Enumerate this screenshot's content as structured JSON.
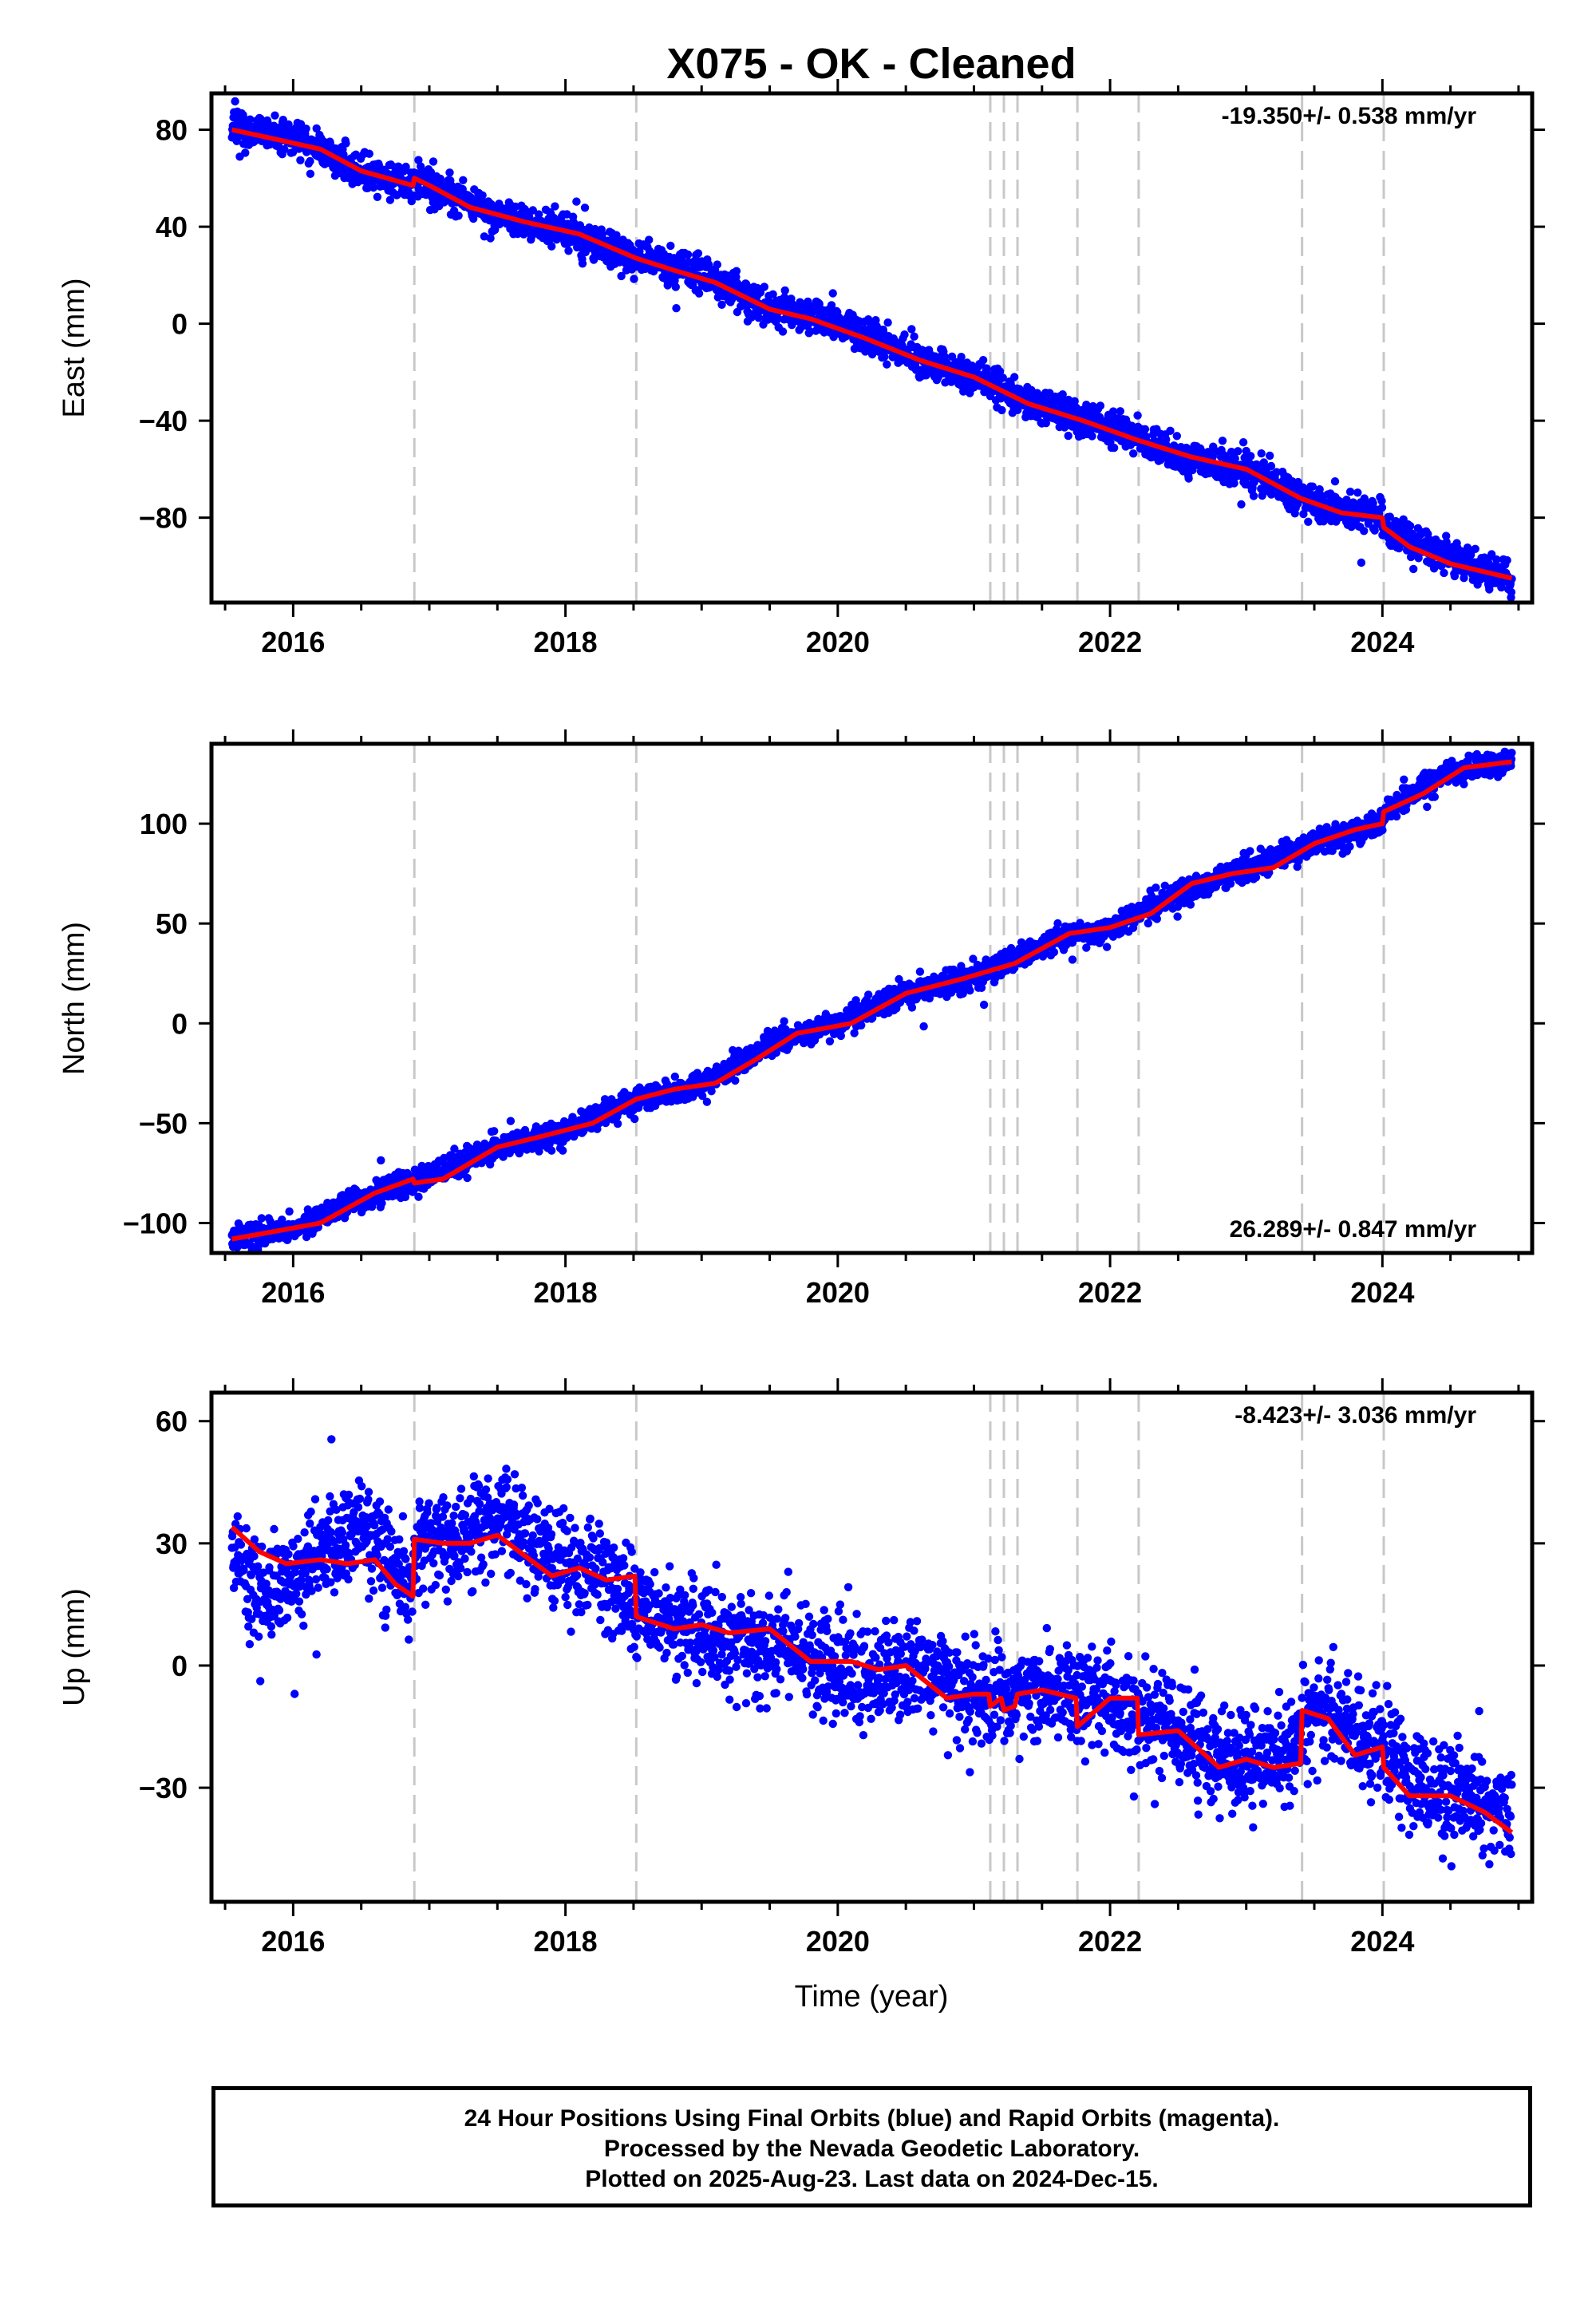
{
  "title": "X075  - OK - Cleaned",
  "colors": {
    "final_orbits": "#0000ff",
    "model_fit": "#ff0000",
    "event_lines": "#c8c8c8",
    "frame": "#000000"
  },
  "xaxis": {
    "label": "Time (year)",
    "range": [
      2015.4,
      2025.1
    ],
    "ticks": [
      2016,
      2018,
      2020,
      2022,
      2024
    ],
    "tick_labels": [
      "2016",
      "2018",
      "2020",
      "2022",
      "2024"
    ]
  },
  "events": [
    2016.89,
    2018.52,
    2021.12,
    2021.22,
    2021.32,
    2021.76,
    2022.21,
    2023.41,
    2024.01
  ],
  "chart_data": [
    {
      "type": "scatter",
      "component": "east",
      "ylabel": "East (mm)",
      "ylim": [
        -115,
        95
      ],
      "yticks": [
        80,
        40,
        0,
        -40,
        -80
      ],
      "ytick_labels": [
        "80",
        "40",
        "0",
        "−40",
        "−80"
      ],
      "rate_label": "-19.350+/- 0.538 mm/yr",
      "rate_position": "top-right",
      "model": {
        "x": [
          2015.55,
          2015.8,
          2016.2,
          2016.5,
          2016.88,
          2016.89,
          2017.0,
          2017.3,
          2017.7,
          2018.1,
          2018.52,
          2018.8,
          2019.1,
          2019.5,
          2019.8,
          2020.2,
          2020.6,
          2021.0,
          2021.4,
          2021.8,
          2022.2,
          2022.6,
          2023.0,
          2023.4,
          2023.7,
          2024.0,
          2024.01,
          2024.2,
          2024.5,
          2024.95
        ],
        "y": [
          80,
          77,
          72,
          63,
          57,
          60,
          57,
          48,
          42,
          37,
          27,
          22,
          17,
          6,
          2,
          -6,
          -15,
          -22,
          -33,
          -40,
          -48,
          -55,
          -60,
          -72,
          -78,
          -80,
          -84,
          -92,
          -99,
          -105
        ]
      },
      "observations": {
        "x": [
          2015.55,
          2016.0,
          2016.5,
          2016.88,
          2016.89,
          2017.5,
          2018.0,
          2018.52,
          2019.0,
          2019.5,
          2020.0,
          2020.6,
          2021.0,
          2021.5,
          2022.0,
          2022.5,
          2023.0,
          2023.5,
          2024.0,
          2024.01,
          2024.5,
          2024.95
        ],
        "y": [
          80,
          77,
          62,
          57,
          60,
          45,
          38,
          27,
          20,
          6,
          1,
          -15,
          -22,
          -35,
          -42,
          -55,
          -60,
          -74,
          -80,
          -84,
          -97,
          -105
        ],
        "scatter_mm": 3.5
      }
    },
    {
      "type": "scatter",
      "component": "north",
      "ylabel": "North (mm)",
      "ylim": [
        -115,
        140
      ],
      "yticks": [
        100,
        50,
        0,
        -50,
        -100
      ],
      "ytick_labels": [
        "100",
        "50",
        "0",
        "−50",
        "−100"
      ],
      "rate_label": "26.289+/- 0.847 mm/yr",
      "rate_position": "bottom-right",
      "model": {
        "x": [
          2015.55,
          2015.8,
          2016.2,
          2016.6,
          2016.88,
          2016.89,
          2017.1,
          2017.5,
          2017.8,
          2018.2,
          2018.52,
          2018.8,
          2019.1,
          2019.4,
          2019.7,
          2020.1,
          2020.5,
          2020.9,
          2021.3,
          2021.7,
          2022.0,
          2022.3,
          2022.6,
          2022.9,
          2023.2,
          2023.5,
          2023.8,
          2024.0,
          2024.01,
          2024.3,
          2024.6,
          2024.95
        ],
        "y": [
          -108,
          -105,
          -100,
          -85,
          -78,
          -80,
          -78,
          -62,
          -57,
          -50,
          -38,
          -33,
          -30,
          -18,
          -5,
          0,
          15,
          22,
          30,
          45,
          48,
          55,
          70,
          75,
          78,
          90,
          97,
          100,
          106,
          115,
          128,
          131
        ]
      },
      "observations": {
        "x": [
          2015.55,
          2016.0,
          2016.6,
          2016.88,
          2016.89,
          2017.5,
          2018.0,
          2018.52,
          2019.0,
          2019.5,
          2020.0,
          2020.5,
          2021.0,
          2021.6,
          2022.0,
          2022.5,
          2023.0,
          2023.5,
          2024.0,
          2024.01,
          2024.5,
          2024.95
        ],
        "y": [
          -108,
          -103,
          -85,
          -78,
          -80,
          -62,
          -54,
          -38,
          -31,
          -10,
          0,
          15,
          23,
          42,
          48,
          65,
          77,
          90,
          100,
          106,
          126,
          131
        ],
        "scatter_mm": 3.0
      }
    },
    {
      "type": "scatter",
      "component": "up",
      "ylabel": "Up (mm)",
      "ylim": [
        -58,
        67
      ],
      "yticks": [
        60,
        30,
        0,
        -30
      ],
      "ytick_labels": [
        "60",
        "30",
        "0",
        "−30"
      ],
      "rate_label": "-8.423+/- 3.036 mm/yr",
      "rate_position": "top-right",
      "model": {
        "x": [
          2015.55,
          2015.75,
          2015.95,
          2016.2,
          2016.4,
          2016.6,
          2016.75,
          2016.88,
          2016.89,
          2017.1,
          2017.3,
          2017.5,
          2017.7,
          2017.9,
          2018.1,
          2018.3,
          2018.51,
          2018.52,
          2018.8,
          2019.0,
          2019.2,
          2019.5,
          2019.8,
          2020.1,
          2020.3,
          2020.5,
          2020.8,
          2021.0,
          2021.11,
          2021.12,
          2021.2,
          2021.22,
          2021.3,
          2021.32,
          2021.5,
          2021.75,
          2021.76,
          2022.0,
          2022.2,
          2022.21,
          2022.5,
          2022.8,
          2023.0,
          2023.2,
          2023.4,
          2023.41,
          2023.6,
          2023.8,
          2024.0,
          2024.01,
          2024.2,
          2024.5,
          2024.75,
          2024.95
        ],
        "y": [
          34,
          28,
          25,
          26,
          25,
          26,
          20,
          17,
          31,
          30,
          30,
          32,
          27,
          22,
          24,
          21,
          22,
          12,
          9,
          10,
          8,
          9,
          1,
          1,
          -1,
          0,
          -8,
          -7,
          -7,
          -10,
          -8,
          -11,
          -10,
          -7,
          -6,
          -8,
          -15,
          -8,
          -8,
          -17,
          -16,
          -25,
          -23,
          -25,
          -24,
          -11,
          -13,
          -22,
          -20,
          -25,
          -32,
          -32,
          -36,
          -41
        ]
      },
      "observations": {
        "x": [
          2015.55,
          2015.8,
          2016.0,
          2016.3,
          2016.5,
          2016.88,
          2016.89,
          2017.2,
          2017.5,
          2017.9,
          2018.3,
          2018.52,
          2019.0,
          2019.6,
          2020.1,
          2020.6,
          2021.1,
          2021.5,
          2022.0,
          2022.3,
          2022.8,
          2023.3,
          2023.5,
          2024.0,
          2024.2,
          2024.6,
          2024.95
        ],
        "y": [
          26,
          16,
          22,
          30,
          33,
          19,
          31,
          31,
          38,
          26,
          22,
          15,
          8,
          4,
          -2,
          -2,
          -8,
          -6,
          -8,
          -13,
          -24,
          -22,
          -11,
          -20,
          -28,
          -33,
          -36
        ],
        "scatter_mm": 6.0
      }
    }
  ],
  "footer": {
    "line1": "24 Hour Positions Using Final Orbits (blue) and Rapid Orbits (magenta).",
    "line2": "Processed by the Nevada Geodetic Laboratory.",
    "line3": "Plotted on 2025-Aug-23. Last data on 2024-Dec-15."
  }
}
